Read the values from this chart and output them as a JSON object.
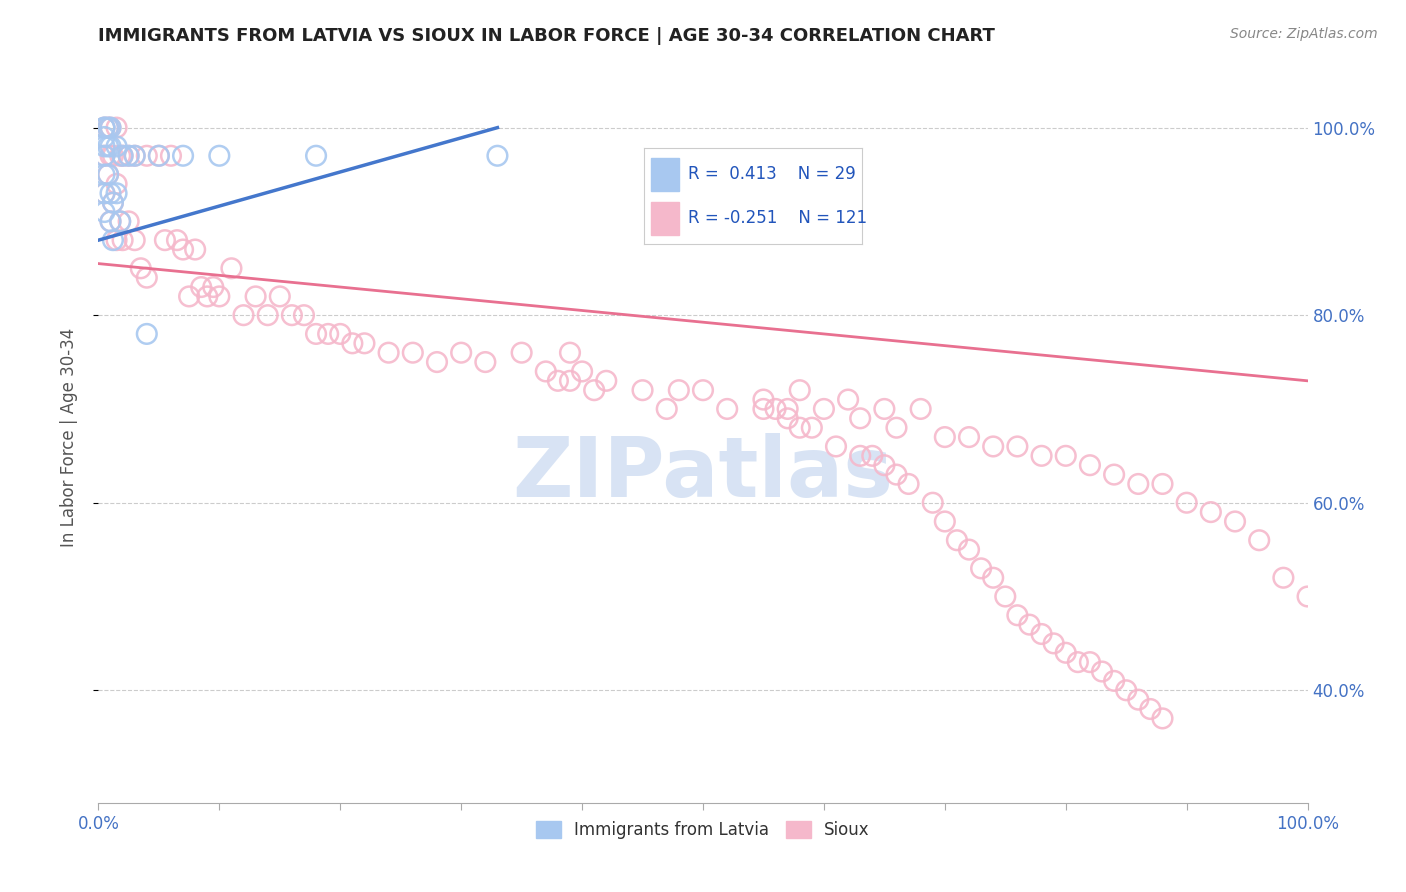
{
  "title": "IMMIGRANTS FROM LATVIA VS SIOUX IN LABOR FORCE | AGE 30-34 CORRELATION CHART",
  "source_text": "Source: ZipAtlas.com",
  "ylabel": "In Labor Force | Age 30-34",
  "xlim": [
    0.0,
    1.0
  ],
  "ylim": [
    0.28,
    1.06
  ],
  "right_yticks": [
    0.4,
    0.6,
    0.8,
    1.0
  ],
  "right_yticklabels": [
    "40.0%",
    "60.0%",
    "80.0%",
    "100.0%"
  ],
  "xtick_positions": [
    0.0,
    0.1,
    0.2,
    0.3,
    0.4,
    0.5,
    0.6,
    0.7,
    0.8,
    0.9,
    1.0
  ],
  "xtick_labels_shown": {
    "0.0": "0.0%",
    "1.0": "100.0%"
  },
  "legend_r_blue": "0.413",
  "legend_n_blue": "29",
  "legend_r_pink": "-0.251",
  "legend_n_pink": "121",
  "blue_color": "#a8c8f0",
  "pink_color": "#f5b8cb",
  "blue_line_color": "#4477cc",
  "pink_line_color": "#e87090",
  "watermark_text": "ZIPatlas",
  "watermark_color": "#c8d8f0",
  "blue_scatter_x": [
    0.005,
    0.005,
    0.005,
    0.005,
    0.005,
    0.005,
    0.005,
    0.005,
    0.008,
    0.008,
    0.008,
    0.01,
    0.01,
    0.01,
    0.01,
    0.012,
    0.012,
    0.015,
    0.015,
    0.018,
    0.02,
    0.025,
    0.03,
    0.04,
    0.05,
    0.07,
    0.1,
    0.18,
    0.33
  ],
  "blue_scatter_y": [
    1.0,
    1.0,
    0.99,
    0.98,
    0.97,
    0.95,
    0.93,
    0.91,
    1.0,
    0.98,
    0.95,
    1.0,
    0.98,
    0.93,
    0.9,
    0.92,
    0.88,
    0.98,
    0.93,
    0.9,
    0.97,
    0.97,
    0.97,
    0.78,
    0.97,
    0.97,
    0.97,
    0.97,
    0.97
  ],
  "pink_scatter_x": [
    0.005,
    0.005,
    0.005,
    0.008,
    0.008,
    0.01,
    0.01,
    0.01,
    0.012,
    0.012,
    0.015,
    0.015,
    0.015,
    0.018,
    0.018,
    0.02,
    0.02,
    0.025,
    0.025,
    0.03,
    0.03,
    0.035,
    0.04,
    0.04,
    0.05,
    0.055,
    0.06,
    0.065,
    0.07,
    0.075,
    0.08,
    0.085,
    0.09,
    0.095,
    0.1,
    0.11,
    0.12,
    0.13,
    0.14,
    0.15,
    0.16,
    0.17,
    0.18,
    0.19,
    0.2,
    0.21,
    0.22,
    0.24,
    0.26,
    0.28,
    0.3,
    0.32,
    0.35,
    0.37,
    0.38,
    0.39,
    0.39,
    0.4,
    0.41,
    0.42,
    0.45,
    0.47,
    0.48,
    0.5,
    0.52,
    0.55,
    0.57,
    0.58,
    0.6,
    0.62,
    0.63,
    0.65,
    0.66,
    0.68,
    0.7,
    0.72,
    0.74,
    0.76,
    0.78,
    0.8,
    0.82,
    0.84,
    0.86,
    0.88,
    0.9,
    0.92,
    0.94,
    0.96,
    0.98,
    1.0,
    0.55,
    0.56,
    0.57,
    0.58,
    0.59,
    0.61,
    0.63,
    0.64,
    0.65,
    0.66,
    0.67,
    0.69,
    0.7,
    0.71,
    0.72,
    0.73,
    0.74,
    0.75,
    0.76,
    0.77,
    0.78,
    0.79,
    0.8,
    0.81,
    0.82,
    0.83,
    0.84,
    0.85,
    0.86,
    0.87,
    0.88
  ],
  "pink_scatter_y": [
    1.0,
    0.97,
    0.93,
    1.0,
    0.95,
    1.0,
    0.97,
    0.9,
    0.97,
    0.92,
    1.0,
    0.94,
    0.88,
    0.97,
    0.9,
    0.97,
    0.88,
    0.97,
    0.9,
    0.97,
    0.88,
    0.85,
    0.97,
    0.84,
    0.97,
    0.88,
    0.97,
    0.88,
    0.87,
    0.82,
    0.87,
    0.83,
    0.82,
    0.83,
    0.82,
    0.85,
    0.8,
    0.82,
    0.8,
    0.82,
    0.8,
    0.8,
    0.78,
    0.78,
    0.78,
    0.77,
    0.77,
    0.76,
    0.76,
    0.75,
    0.76,
    0.75,
    0.76,
    0.74,
    0.73,
    0.76,
    0.73,
    0.74,
    0.72,
    0.73,
    0.72,
    0.7,
    0.72,
    0.72,
    0.7,
    0.7,
    0.7,
    0.72,
    0.7,
    0.71,
    0.69,
    0.7,
    0.68,
    0.7,
    0.67,
    0.67,
    0.66,
    0.66,
    0.65,
    0.65,
    0.64,
    0.63,
    0.62,
    0.62,
    0.6,
    0.59,
    0.58,
    0.56,
    0.52,
    0.5,
    0.71,
    0.7,
    0.69,
    0.68,
    0.68,
    0.66,
    0.65,
    0.65,
    0.64,
    0.63,
    0.62,
    0.6,
    0.58,
    0.56,
    0.55,
    0.53,
    0.52,
    0.5,
    0.48,
    0.47,
    0.46,
    0.45,
    0.44,
    0.43,
    0.43,
    0.42,
    0.41,
    0.4,
    0.39,
    0.38,
    0.37
  ],
  "blue_line_x": [
    0.0,
    0.33
  ],
  "blue_line_y_start": 0.88,
  "blue_line_y_end": 1.0,
  "pink_line_x": [
    0.0,
    1.0
  ],
  "pink_line_y_start": 0.855,
  "pink_line_y_end": 0.73
}
